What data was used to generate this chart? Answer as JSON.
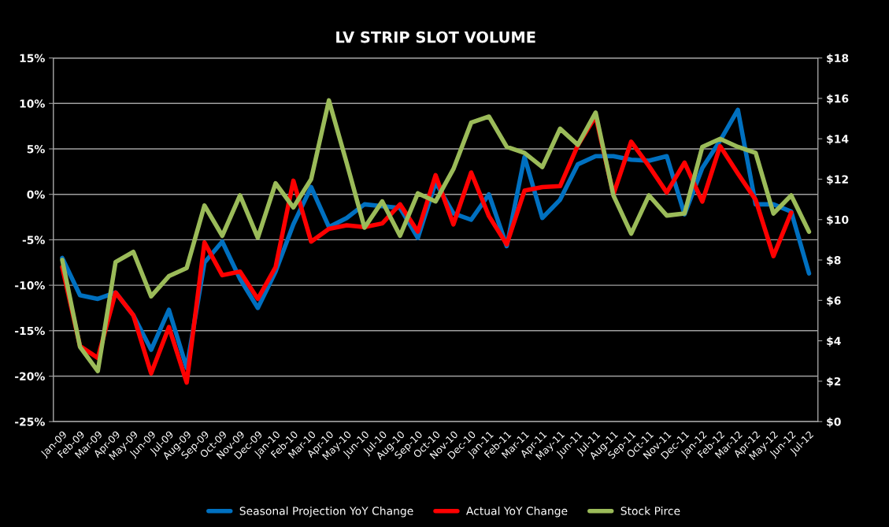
{
  "chart_data": {
    "type": "line",
    "title": "LV STRIP SLOT VOLUME",
    "categories": [
      "Jan-09",
      "Feb-09",
      "Mar-09",
      "Apr-09",
      "May-09",
      "Jun-09",
      "Jul-09",
      "Aug-09",
      "Sep-09",
      "Oct-09",
      "Nov-09",
      "Dec-09",
      "Jan-10",
      "Feb-10",
      "Mar-10",
      "Apr-10",
      "May-10",
      "Jun-10",
      "Jul-10",
      "Aug-10",
      "Sep-10",
      "Oct-10",
      "Nov-10",
      "Dec-10",
      "Jan-11",
      "Feb-11",
      "Mar-11",
      "Apr-11",
      "May-11",
      "Jun-11",
      "Jul-11",
      "Aug-11",
      "Sep-11",
      "Oct-11",
      "Nov-11",
      "Dec-11",
      "Jan-12",
      "Feb-12",
      "Mar-12",
      "Apr-12",
      "May-12",
      "Jun-12",
      "Jul-12"
    ],
    "series": [
      {
        "name": "Seasonal Projection YoY Change",
        "color": "#0070c0",
        "values": [
          -7.0,
          -11.1,
          -11.5,
          -10.8,
          -13.3,
          -17.1,
          -12.7,
          -19.1,
          -7.5,
          -5.2,
          -9.3,
          -12.5,
          -8.5,
          -3.3,
          0.8,
          -3.6,
          -2.6,
          -1.1,
          -1.3,
          -1.5,
          -4.8,
          1.3,
          -2.1,
          -2.8,
          0.0,
          -5.7,
          4.1,
          -2.6,
          -0.6,
          3.3,
          4.2,
          4.2,
          3.8,
          3.7,
          4.2,
          -2.2,
          2.9,
          5.9,
          9.3,
          -1.1,
          -1.1,
          -1.9,
          -8.7
        ]
      },
      {
        "name": "Actual YoY Change",
        "color": "#ff0000",
        "values": [
          -8.0,
          -16.7,
          -18.0,
          -10.8,
          -13.3,
          -19.7,
          -14.6,
          -20.7,
          -5.3,
          -8.9,
          -8.5,
          -11.5,
          -8.0,
          1.5,
          -5.2,
          -3.8,
          -3.4,
          -3.6,
          -3.2,
          -1.1,
          -4.1,
          2.1,
          -3.3,
          2.4,
          -2.4,
          -5.5,
          0.4,
          0.8,
          0.9,
          5.4,
          8.6,
          0.0,
          5.8,
          3.1,
          0.2,
          3.5,
          -0.8,
          5.3,
          2.3,
          -0.6,
          -6.8,
          -2.0,
          null
        ]
      },
      {
        "name": "Stock Pirce",
        "color": "#9bbb59",
        "axis": "y2",
        "values": [
          8.0,
          3.7,
          2.5,
          7.9,
          8.4,
          6.2,
          7.2,
          7.6,
          10.7,
          9.2,
          11.2,
          9.1,
          11.8,
          10.6,
          12.0,
          15.9,
          12.8,
          9.6,
          10.9,
          9.2,
          11.3,
          10.9,
          12.5,
          14.8,
          15.1,
          13.6,
          13.3,
          12.6,
          14.5,
          13.7,
          15.3,
          11.2,
          9.3,
          11.2,
          10.2,
          10.3,
          13.6,
          14.0,
          13.6,
          13.3,
          10.3,
          11.2,
          9.4
        ]
      }
    ],
    "ylim": [
      -25,
      15
    ],
    "yticks": [
      {
        "value": -25,
        "label": "-25%"
      },
      {
        "value": -20,
        "label": "-20%"
      },
      {
        "value": -15,
        "label": "-15%"
      },
      {
        "value": -10,
        "label": "-10%"
      },
      {
        "value": -5,
        "label": "-5%"
      },
      {
        "value": 0,
        "label": "0%"
      },
      {
        "value": 5,
        "label": "5%"
      },
      {
        "value": 10,
        "label": "10%"
      },
      {
        "value": 15,
        "label": "15%"
      }
    ],
    "y2lim": [
      0,
      18
    ],
    "y2ticks": [
      {
        "value": 0,
        "label": "$0"
      },
      {
        "value": 2,
        "label": "$2"
      },
      {
        "value": 4,
        "label": "$4"
      },
      {
        "value": 6,
        "label": "$6"
      },
      {
        "value": 8,
        "label": "$8"
      },
      {
        "value": 10,
        "label": "$10"
      },
      {
        "value": 12,
        "label": "$12"
      },
      {
        "value": 14,
        "label": "$14"
      },
      {
        "value": 16,
        "label": "$16"
      },
      {
        "value": 18,
        "label": "$18"
      }
    ],
    "grid": "y",
    "legend": "bottom",
    "line_style": "solid"
  }
}
